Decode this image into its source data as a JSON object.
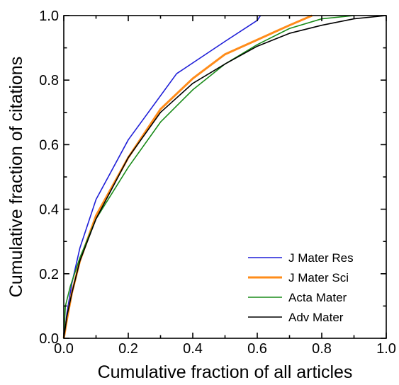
{
  "chart_data": {
    "type": "line",
    "title": "",
    "xlabel": "Cumulative fraction of all articles",
    "ylabel": "Cumulative fraction of citations",
    "xlim": [
      0.0,
      1.0
    ],
    "ylim": [
      0.0,
      1.0
    ],
    "x_ticks": [
      "0.0",
      "0.2",
      "0.4",
      "0.6",
      "0.8",
      "1.0"
    ],
    "y_ticks": [
      "0.0",
      "0.2",
      "0.4",
      "0.6",
      "0.8",
      "1.0"
    ],
    "x_tick_values": [
      0.0,
      0.2,
      0.4,
      0.6,
      0.8,
      1.0
    ],
    "y_tick_values": [
      0.0,
      0.2,
      0.4,
      0.6,
      0.8,
      1.0
    ],
    "grid": false,
    "legend_position": "bottom-right",
    "series": [
      {
        "name": "J Mater Res",
        "color": "#1f1fd8",
        "x": [
          0.0,
          0.01,
          0.025,
          0.05,
          0.1,
          0.2,
          0.35,
          0.5,
          0.6,
          0.61
        ],
        "y": [
          0.0,
          0.08,
          0.17,
          0.28,
          0.43,
          0.615,
          0.82,
          0.92,
          0.985,
          1.0
        ]
      },
      {
        "name": "J Mater Sci",
        "color": "#ff8c1a",
        "x": [
          0.0,
          0.01,
          0.025,
          0.05,
          0.1,
          0.2,
          0.3,
          0.4,
          0.5,
          0.6,
          0.7,
          0.77
        ],
        "y": [
          0.0,
          0.06,
          0.14,
          0.24,
          0.38,
          0.56,
          0.71,
          0.805,
          0.88,
          0.925,
          0.97,
          1.0
        ]
      },
      {
        "name": "Acta Mater",
        "color": "#1a8c1a",
        "x": [
          0.0,
          0.005,
          0.02,
          0.05,
          0.1,
          0.2,
          0.3,
          0.4,
          0.5,
          0.6,
          0.7,
          0.8,
          0.9
        ],
        "y": [
          0.0,
          0.1,
          0.16,
          0.25,
          0.37,
          0.53,
          0.67,
          0.77,
          0.85,
          0.91,
          0.96,
          0.99,
          1.0
        ]
      },
      {
        "name": "Adv Mater",
        "color": "#000000",
        "x": [
          0.0,
          0.01,
          0.025,
          0.05,
          0.1,
          0.2,
          0.3,
          0.4,
          0.5,
          0.6,
          0.7,
          0.8,
          0.9,
          1.0
        ],
        "y": [
          0.0,
          0.07,
          0.14,
          0.24,
          0.37,
          0.56,
          0.7,
          0.79,
          0.85,
          0.905,
          0.945,
          0.97,
          0.99,
          1.0
        ]
      }
    ]
  }
}
